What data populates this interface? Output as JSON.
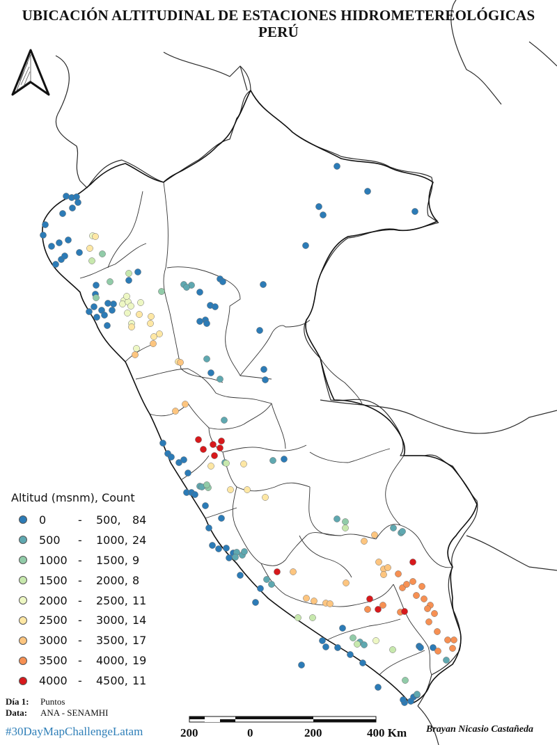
{
  "title_line1": "UBICACIÓN ALTITUDINAL DE ESTACIONES HIDROMETEREOLÓGICAS",
  "title_line2": "PERÚ",
  "legend": {
    "title": "Altitud (msnm), Count",
    "classes": [
      {
        "low": "0",
        "high": "500,",
        "count": "84",
        "color": "#2c7bb6"
      },
      {
        "low": "500",
        "high": "1000,",
        "count": "24",
        "color": "#5fa8b0"
      },
      {
        "low": "1000",
        "high": "1500,",
        "count": "9",
        "color": "#91cba8"
      },
      {
        "low": "1500",
        "high": "2000,",
        "count": "8",
        "color": "#c7e8ad"
      },
      {
        "low": "2000",
        "high": "2500,",
        "count": "11",
        "color": "#edf7c3"
      },
      {
        "low": "2500",
        "high": "3000,",
        "count": "14",
        "color": "#fee7a4"
      },
      {
        "low": "3000",
        "high": "3500,",
        "count": "17",
        "color": "#fdc57f"
      },
      {
        "low": "3500",
        "high": "4000,",
        "count": "19",
        "color": "#f69053"
      },
      {
        "low": "4000",
        "high": "4500,",
        "count": "11",
        "color": "#d7191c"
      }
    ]
  },
  "credits": {
    "day_label": "Día 1:",
    "day_value": "Puntos",
    "data_label": "Data:",
    "data_value": "ANA - SENAMHI"
  },
  "hashtag": "#30DayMapChallengeLatam",
  "author": "Brayan Nicasio Castañeda",
  "scale": {
    "labels": [
      "200",
      "0",
      "200",
      "400 Km"
    ]
  },
  "north_arrow": "north-arrow-icon",
  "stations": [
    [
      0,
      484,
      239
    ],
    [
      0,
      528,
      275
    ],
    [
      0,
      458,
      297
    ],
    [
      0,
      464,
      309
    ],
    [
      0,
      596,
      304
    ],
    [
      0,
      439,
      353
    ],
    [
      0,
      378,
      409
    ],
    [
      0,
      373,
      475
    ],
    [
      0,
      379,
      531
    ],
    [
      0,
      381,
      546
    ],
    [
      0,
      95,
      282
    ],
    [
      0,
      103,
      284
    ],
    [
      0,
      110,
      283
    ],
    [
      0,
      112,
      291
    ],
    [
      0,
      104,
      299
    ],
    [
      0,
      90,
      307
    ],
    [
      0,
      65,
      323
    ],
    [
      0,
      62,
      338
    ],
    [
      0,
      74,
      354
    ],
    [
      0,
      85,
      349
    ],
    [
      0,
      98,
      345
    ],
    [
      0,
      88,
      373
    ],
    [
      0,
      93,
      368
    ],
    [
      0,
      80,
      380
    ],
    [
      0,
      114,
      363
    ],
    [
      0,
      138,
      410
    ],
    [
      0,
      137,
      423
    ],
    [
      0,
      135,
      441
    ],
    [
      0,
      128,
      448
    ],
    [
      0,
      146,
      446
    ],
    [
      0,
      150,
      453
    ],
    [
      0,
      139,
      456
    ],
    [
      0,
      154,
      468
    ],
    [
      0,
      161,
      446
    ],
    [
      0,
      163,
      437
    ],
    [
      0,
      155,
      436
    ],
    [
      0,
      198,
      391
    ],
    [
      0,
      185,
      403
    ],
    [
      0,
      287,
      420
    ],
    [
      0,
      302,
      439
    ],
    [
      0,
      316,
      401
    ],
    [
      0,
      320,
      405
    ],
    [
      0,
      309,
      441
    ],
    [
      0,
      295,
      460
    ],
    [
      0,
      287,
      462
    ],
    [
      0,
      297,
      465
    ],
    [
      0,
      303,
      536
    ],
    [
      0,
      234,
      637
    ],
    [
      0,
      241,
      652
    ],
    [
      0,
      246,
      657
    ],
    [
      0,
      257,
      665
    ],
    [
      0,
      264,
      661
    ],
    [
      0,
      270,
      680
    ],
    [
      0,
      268,
      708
    ],
    [
      0,
      275,
      708
    ],
    [
      0,
      280,
      711
    ],
    [
      0,
      295,
      727
    ],
    [
      0,
      300,
      759
    ],
    [
      0,
      318,
      745
    ],
    [
      0,
      305,
      784
    ],
    [
      0,
      314,
      789
    ],
    [
      0,
      325,
      788
    ],
    [
      0,
      335,
      795
    ],
    [
      0,
      329,
      802
    ],
    [
      0,
      345,
      827
    ],
    [
      0,
      374,
      846
    ],
    [
      0,
      367,
      866
    ],
    [
      0,
      408,
      660
    ],
    [
      0,
      433,
      956
    ],
    [
      0,
      463,
      921
    ],
    [
      0,
      468,
      930
    ],
    [
      0,
      485,
      931
    ],
    [
      0,
      503,
      941
    ],
    [
      0,
      521,
      953
    ],
    [
      0,
      492,
      903
    ],
    [
      0,
      543,
      988
    ],
    [
      0,
      581,
      1010
    ],
    [
      0,
      579,
      1006
    ],
    [
      0,
      594,
      1002
    ],
    [
      0,
      590,
      1008
    ],
    [
      0,
      599,
      999
    ],
    [
      0,
      602,
      929
    ],
    [
      0,
      604,
      931
    ],
    [
      0,
      622,
      931
    ],
    [
      1,
      264,
      409
    ],
    [
      1,
      275,
      410
    ],
    [
      1,
      268,
      413
    ],
    [
      1,
      297,
      516
    ],
    [
      1,
      316,
      545
    ],
    [
      1,
      322,
      604
    ],
    [
      1,
      392,
      662
    ],
    [
      1,
      323,
      665
    ],
    [
      1,
      287,
      699
    ],
    [
      1,
      290,
      700
    ],
    [
      1,
      484,
      746
    ],
    [
      1,
      340,
      794
    ],
    [
      1,
      348,
      798
    ],
    [
      1,
      351,
      793
    ],
    [
      1,
      338,
      801
    ],
    [
      1,
      383,
      833
    ],
    [
      1,
      390,
      840
    ],
    [
      1,
      565,
      759
    ],
    [
      1,
      576,
      766
    ],
    [
      1,
      578,
      764
    ],
    [
      1,
      517,
      923
    ],
    [
      1,
      523,
      927
    ],
    [
      1,
      599,
      998
    ],
    [
      1,
      641,
      949
    ],
    [
      2,
      147,
      365
    ],
    [
      2,
      158,
      405
    ],
    [
      2,
      138,
      428
    ],
    [
      2,
      232,
      419
    ],
    [
      2,
      299,
      701
    ],
    [
      2,
      297,
      697
    ],
    [
      2,
      496,
      750
    ],
    [
      2,
      507,
      917
    ],
    [
      2,
      582,
      978
    ],
    [
      3,
      132,
      375
    ],
    [
      3,
      185,
      393
    ],
    [
      3,
      325,
      666
    ],
    [
      3,
      428,
      888
    ],
    [
      3,
      496,
      759
    ],
    [
      3,
      449,
      888
    ],
    [
      3,
      513,
      926
    ],
    [
      3,
      564,
      934
    ],
    [
      4,
      133,
      339
    ],
    [
      4,
      178,
      432
    ],
    [
      4,
      176,
      437
    ],
    [
      4,
      184,
      434
    ],
    [
      4,
      182,
      426
    ],
    [
      4,
      188,
      440
    ],
    [
      4,
      202,
      435
    ],
    [
      4,
      183,
      450
    ],
    [
      4,
      189,
      465
    ],
    [
      4,
      196,
      501
    ],
    [
      4,
      540,
      921
    ],
    [
      5,
      137,
      340
    ],
    [
      5,
      129,
      357
    ],
    [
      5,
      200,
      452
    ],
    [
      5,
      189,
      470
    ],
    [
      5,
      217,
      455
    ],
    [
      5,
      216,
      465
    ],
    [
      5,
      221,
      484
    ],
    [
      5,
      229,
      480
    ],
    [
      5,
      256,
      520
    ],
    [
      5,
      350,
      667
    ],
    [
      5,
      355,
      704
    ],
    [
      5,
      381,
      715
    ],
    [
      5,
      331,
      704
    ],
    [
      5,
      303,
      670
    ],
    [
      6,
      266,
      581
    ],
    [
      6,
      252,
      591
    ],
    [
      6,
      259,
      521
    ],
    [
      6,
      194,
      510
    ],
    [
      6,
      220,
      494
    ],
    [
      6,
      538,
      769
    ],
    [
      6,
      523,
      778
    ],
    [
      6,
      544,
      808
    ],
    [
      6,
      551,
      818
    ],
    [
      6,
      557,
      816
    ],
    [
      6,
      551,
      826
    ],
    [
      6,
      421,
      822
    ],
    [
      6,
      440,
      860
    ],
    [
      6,
      451,
      864
    ],
    [
      6,
      468,
      867
    ],
    [
      6,
      474,
      868
    ],
    [
      6,
      497,
      838
    ],
    [
      7,
      572,
      825
    ],
    [
      7,
      578,
      845
    ],
    [
      7,
      593,
      836
    ],
    [
      7,
      606,
      843
    ],
    [
      7,
      609,
      861
    ],
    [
      7,
      618,
      870
    ],
    [
      7,
      624,
      882
    ],
    [
      7,
      616,
      894
    ],
    [
      7,
      628,
      908
    ],
    [
      7,
      643,
      920
    ],
    [
      7,
      650,
      932
    ],
    [
      7,
      652,
      920
    ],
    [
      7,
      550,
      870
    ],
    [
      7,
      614,
      875
    ],
    [
      7,
      575,
      880
    ],
    [
      7,
      629,
      936
    ],
    [
      7,
      528,
      876
    ],
    [
      7,
      584,
      840
    ],
    [
      7,
      598,
      856
    ],
    [
      8,
      285,
      632
    ],
    [
      8,
      292,
      646
    ],
    [
      8,
      306,
      639
    ],
    [
      8,
      316,
      644
    ],
    [
      8,
      318,
      634
    ],
    [
      8,
      308,
      655
    ],
    [
      8,
      398,
      822
    ],
    [
      8,
      531,
      861
    ],
    [
      8,
      543,
      876
    ],
    [
      8,
      593,
      808
    ],
    [
      8,
      581,
      879
    ]
  ]
}
